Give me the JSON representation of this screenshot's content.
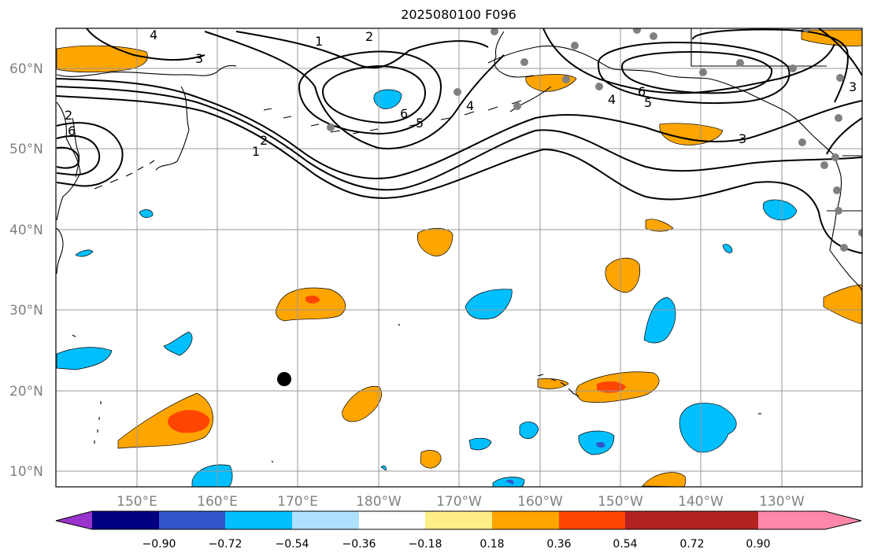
{
  "title": "2025080100 F096",
  "map": {
    "region": "North Pacific",
    "lat_labels": [
      "10°N",
      "20°N",
      "30°N",
      "40°N",
      "50°N",
      "60°N"
    ],
    "lon_labels": [
      "150°E",
      "160°E",
      "170°E",
      "180°W",
      "170°W",
      "160°W",
      "150°W",
      "140°W",
      "130°W"
    ],
    "contour_labels": [
      "1",
      "2",
      "3",
      "4",
      "5",
      "6"
    ],
    "storm_marker": {
      "lat": 21.4,
      "lon": 171.5
    }
  },
  "colorbar": {
    "tick_labels": [
      "−0.90",
      "−0.72",
      "−0.54",
      "−0.36",
      "−0.18",
      "0.18",
      "0.36",
      "0.54",
      "0.72",
      "0.90"
    ],
    "colors": [
      "#9933cc",
      "#000080",
      "#3355cc",
      "#00bfff",
      "#b0e0ff",
      "#ffffff",
      "#ffee88",
      "#ffa500",
      "#ff4500",
      "#b22222",
      "#ff88aa"
    ]
  },
  "colors": {
    "positive_mid": "#ffa500",
    "positive_high": "#ff4500",
    "negative_mid": "#00bfff",
    "negative_high": "#3355cc",
    "station_dot": "#808080"
  }
}
